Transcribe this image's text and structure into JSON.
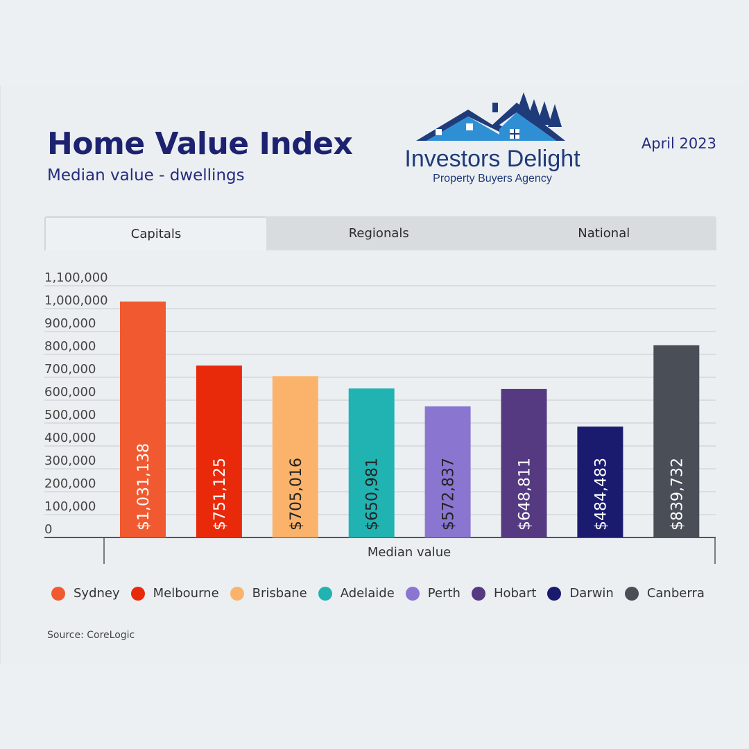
{
  "header": {
    "title": "Home Value Index",
    "subtitle": "Median value - dwellings",
    "date": "April 2023"
  },
  "brand": {
    "name": "Investors Delight",
    "tagline": "Property Buyers Agency"
  },
  "tabs": [
    {
      "label": "Capitals",
      "active": true
    },
    {
      "label": "Regionals",
      "active": false
    },
    {
      "label": "National",
      "active": false
    }
  ],
  "chart_data": {
    "type": "bar",
    "categories": [
      "Sydney",
      "Melbourne",
      "Brisbane",
      "Adelaide",
      "Perth",
      "Hobart",
      "Darwin",
      "Canberra"
    ],
    "values": [
      1031138,
      751125,
      705016,
      650981,
      572837,
      648811,
      484483,
      839732
    ],
    "data_labels": [
      "$1,031,138",
      "$751,125",
      "$705,016",
      "$650,981",
      "$572,837",
      "$648,811",
      "$484,483",
      "$839,732"
    ],
    "colors": [
      "#f15a31",
      "#e82a0a",
      "#fbb36b",
      "#20b3b1",
      "#8a76d1",
      "#553a82",
      "#1a1a6e",
      "#4a4e57"
    ],
    "label_colors": [
      "#ffffff",
      "#ffffff",
      "#222222",
      "#222222",
      "#222222",
      "#ffffff",
      "#ffffff",
      "#ffffff"
    ],
    "y_ticks": [
      "0",
      "100,000",
      "200,000",
      "300,000",
      "400,000",
      "500,000",
      "600,000",
      "700,000",
      "800,000",
      "900,000",
      "1,000,000",
      "1,100,000"
    ],
    "ylim": [
      0,
      1100000
    ],
    "xlabel": "Median value",
    "grid": true,
    "legend_placement": "bottom"
  },
  "source": "Source: CoreLogic"
}
